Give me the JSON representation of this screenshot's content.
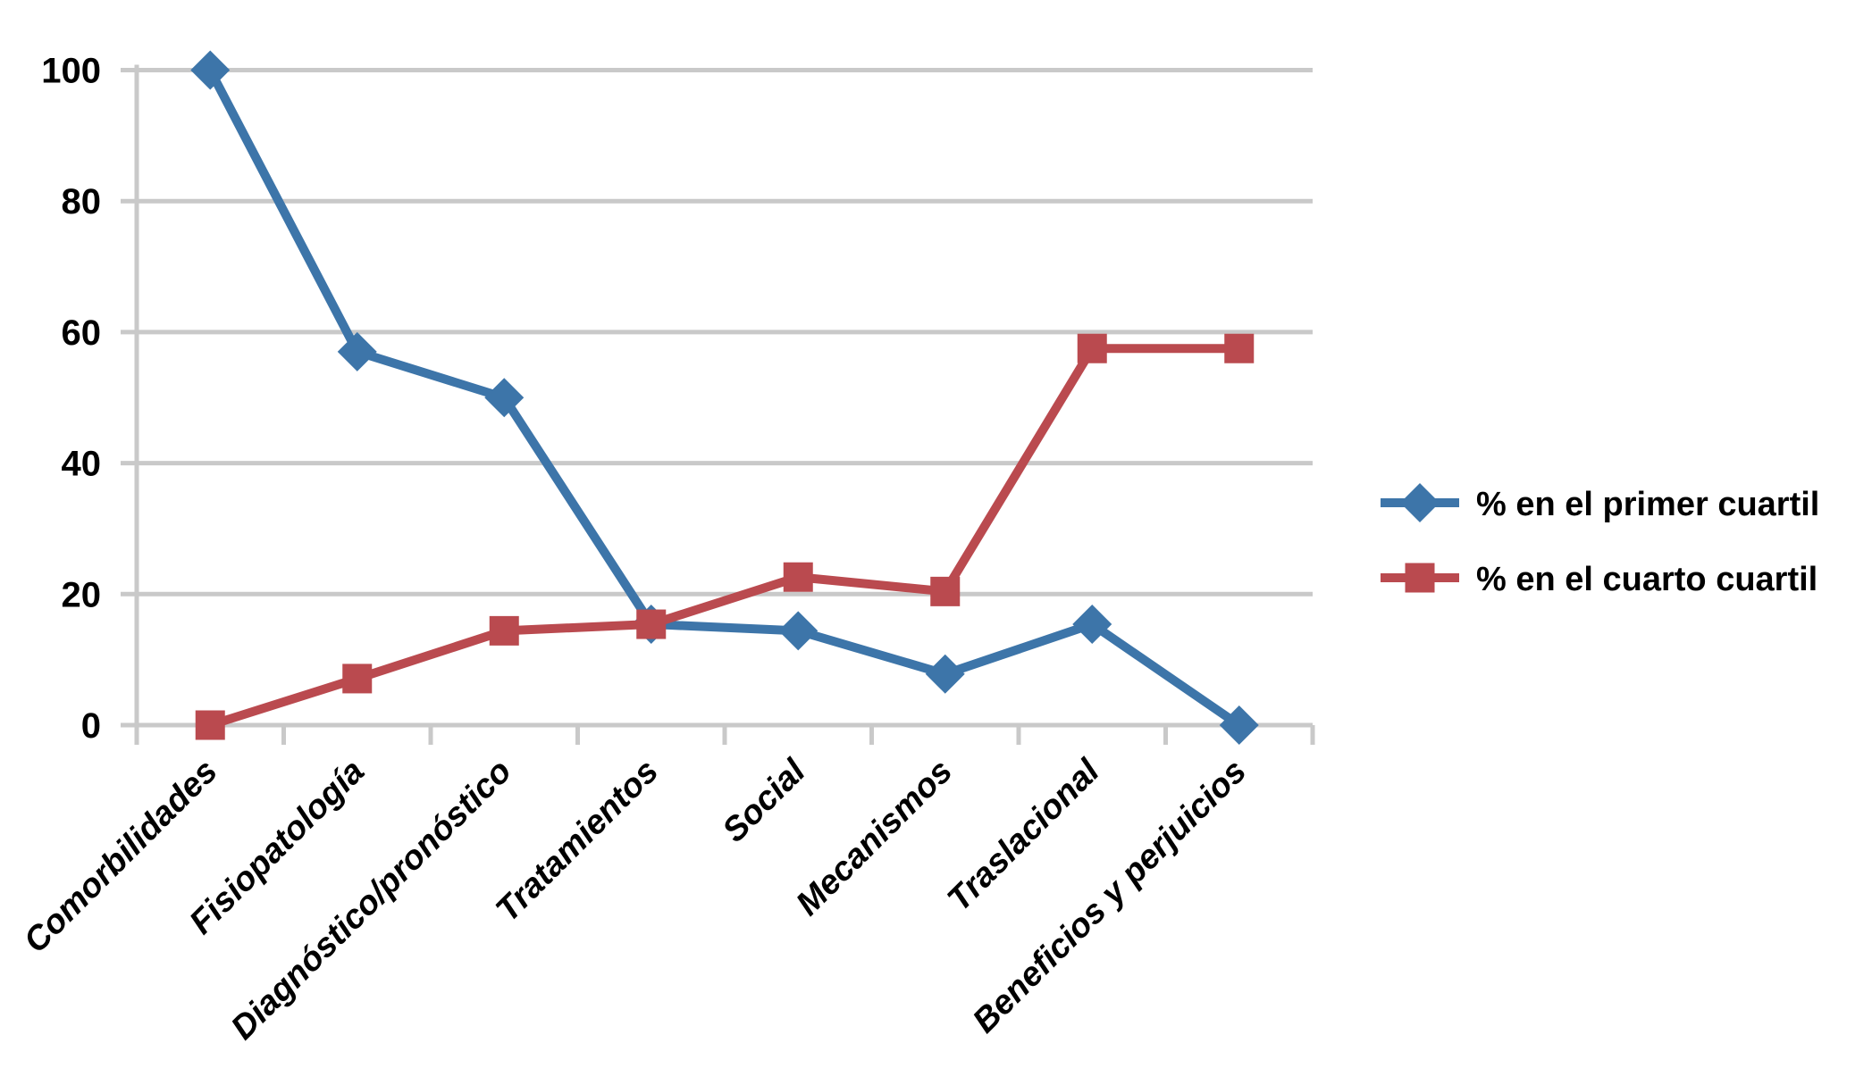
{
  "chart_data": {
    "type": "line",
    "title": "",
    "xlabel": "",
    "ylabel": "",
    "categories": [
      "Comorbilidades",
      "Fisiopatología",
      "Diagnóstico/pronóstico",
      "Tratamientos",
      "Social",
      "Mecanismos",
      "Traslacional",
      "Beneficios y perjuicios"
    ],
    "series": [
      {
        "name": "% en el primer cuartil",
        "marker": "diamond",
        "color": "#3D75A9",
        "values": [
          100,
          57,
          50,
          15.4,
          14.4,
          7.8,
          15.4,
          0
        ]
      },
      {
        "name": "% en el cuarto cuartil",
        "marker": "square",
        "color": "#BA4A4F",
        "values": [
          0,
          7.1,
          14.4,
          15.4,
          22.6,
          20.4,
          57.5,
          57.5
        ]
      }
    ],
    "ylim": [
      0,
      100
    ],
    "yticks": [
      0,
      20,
      40,
      60,
      80,
      100
    ],
    "grid": "horizontal",
    "gridline_color": "#C9C9C9",
    "axis_color": "#C9C9C9",
    "text_color": "#000000",
    "background": "#FFFFFF",
    "legend_position": "right"
  }
}
